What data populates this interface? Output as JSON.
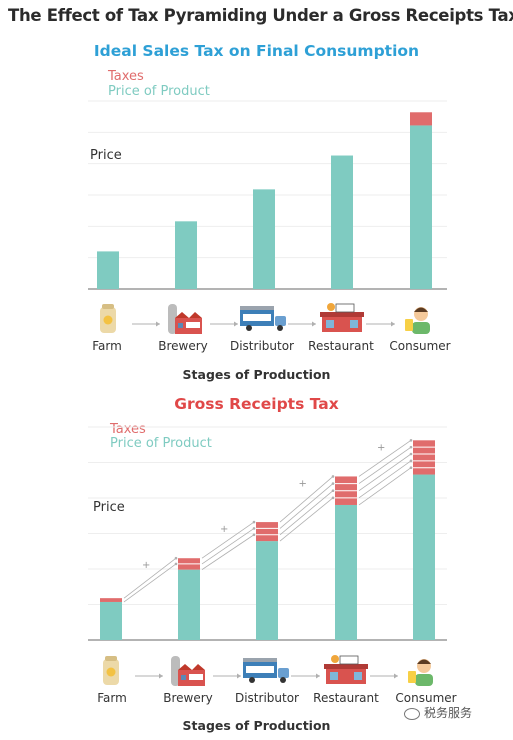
{
  "title": "The Effect of Tax Pyramiding Under a Gross Receipts Tax",
  "colors": {
    "taxes": "#e06c6c",
    "price": "#7fcbc1",
    "title1": "#2ea0d6",
    "title2": "#e04848",
    "grid": "#eeeeee",
    "axis": "#9a9a9a",
    "arrow": "#b0b0b0"
  },
  "stages": [
    "Farm",
    "Brewery",
    "Distributor",
    "Restaurant",
    "Consumer"
  ],
  "stage_icons": [
    "grain-sack-icon",
    "brewery-icon",
    "transport-truck-icon",
    "bar-restaurant-icon",
    "consumer-person-icon"
  ],
  "chart_data": [
    {
      "type": "bar",
      "stacked": true,
      "title": "Ideal Sales Tax on Final Consumption",
      "ylabel": "Price",
      "xlabel": "Stages of Production",
      "categories": [
        "Farm",
        "Brewery",
        "Distributor",
        "Restaurant",
        "Consumer"
      ],
      "legend": [
        "Taxes",
        "Price of Product"
      ],
      "series": [
        {
          "name": "Price of Product",
          "values": [
            20,
            36,
            53,
            71,
            87
          ]
        },
        {
          "name": "Taxes",
          "values": [
            0,
            0,
            0,
            0,
            7
          ]
        }
      ],
      "ylim": [
        0,
        100
      ],
      "grid": true,
      "legend_position": "top-left"
    },
    {
      "type": "bar",
      "stacked": true,
      "title": "Gross Receipts Tax",
      "ylabel": "Price",
      "xlabel": "Stages of Production",
      "categories": [
        "Farm",
        "Brewery",
        "Distributor",
        "Restaurant",
        "Consumer"
      ],
      "legend": [
        "Taxes",
        "Price of Product"
      ],
      "series": [
        {
          "name": "Price of Product",
          "values": [
            20,
            37,
            52,
            71,
            87
          ]
        },
        {
          "name": "Taxes",
          "values": [
            2,
            6,
            10,
            15,
            18
          ]
        }
      ],
      "tax_layers": [
        1,
        2,
        3,
        4,
        5
      ],
      "plus_markers": [
        "+",
        "+",
        "+",
        "+"
      ],
      "ylim": [
        0,
        112
      ],
      "grid": true,
      "legend_position": "top-left"
    }
  ],
  "watermark": "税务服务"
}
